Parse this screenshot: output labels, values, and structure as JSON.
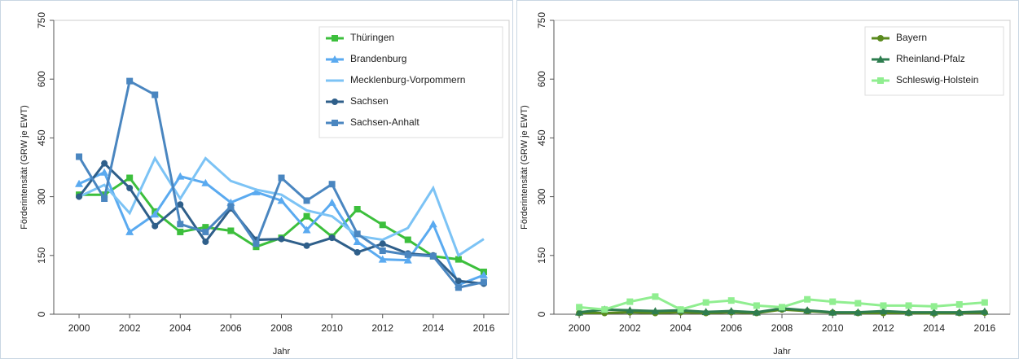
{
  "chart_data": [
    {
      "type": "line",
      "ylabel": "Förderintensität (GRW je EWT)",
      "xlabel": "Jahr",
      "x": [
        2000,
        2001,
        2002,
        2003,
        2004,
        2005,
        2006,
        2007,
        2008,
        2009,
        2010,
        2011,
        2012,
        2013,
        2014,
        2015,
        2016
      ],
      "xlim": [
        1999,
        2017
      ],
      "xticks": [
        2000,
        2002,
        2004,
        2006,
        2008,
        2010,
        2012,
        2014,
        2016
      ],
      "ylim": [
        0,
        750
      ],
      "yticks": [
        0,
        150,
        300,
        450,
        600,
        750
      ],
      "legend": "upper right",
      "series": [
        {
          "name": "Thüringen",
          "color": "#3cbf3c",
          "marker": "square",
          "values": [
            305,
            305,
            348,
            262,
            210,
            222,
            213,
            172,
            195,
            250,
            198,
            268,
            228,
            190,
            148,
            140,
            108
          ]
        },
        {
          "name": "Brandenburg",
          "color": "#5aaaf0",
          "marker": "triangle",
          "values": [
            333,
            362,
            210,
            255,
            352,
            335,
            285,
            312,
            290,
            215,
            285,
            185,
            140,
            138,
            230,
            75,
            100
          ]
        },
        {
          "name": "Mecklenburg-Vorpommern",
          "color": "#7cc3f5",
          "marker": "none",
          "values": [
            300,
            330,
            258,
            398,
            295,
            398,
            340,
            318,
            305,
            265,
            250,
            200,
            190,
            220,
            322,
            150,
            192
          ]
        },
        {
          "name": "Sachsen",
          "color": "#2f5f8a",
          "marker": "circle",
          "values": [
            300,
            385,
            322,
            225,
            280,
            185,
            270,
            190,
            192,
            175,
            195,
            158,
            180,
            155,
            150,
            85,
            78
          ]
        },
        {
          "name": "Sachsen-Anhalt",
          "color": "#4a86c0",
          "marker": "square",
          "values": [
            402,
            295,
            595,
            560,
            230,
            210,
            275,
            180,
            348,
            290,
            332,
            205,
            162,
            152,
            148,
            68,
            82
          ]
        }
      ]
    },
    {
      "type": "line",
      "ylabel": "Förderintensität (GRW je EWT)",
      "xlabel": "Jahr",
      "x": [
        2000,
        2001,
        2002,
        2003,
        2004,
        2005,
        2006,
        2007,
        2008,
        2009,
        2010,
        2011,
        2012,
        2013,
        2014,
        2015,
        2016
      ],
      "xlim": [
        1999,
        2017
      ],
      "xticks": [
        2000,
        2002,
        2004,
        2006,
        2008,
        2010,
        2012,
        2014,
        2016
      ],
      "ylim": [
        0,
        750
      ],
      "yticks": [
        0,
        150,
        300,
        450,
        600,
        750
      ],
      "legend": "upper right",
      "series": [
        {
          "name": "Bayern",
          "color": "#5a8a1e",
          "marker": "circle",
          "values": [
            3,
            3,
            5,
            3,
            5,
            3,
            5,
            3,
            12,
            8,
            4,
            3,
            3,
            3,
            2,
            3,
            4
          ]
        },
        {
          "name": "Rheinland-Pfalz",
          "color": "#2e7d4f",
          "marker": "triangle",
          "values": [
            5,
            12,
            10,
            8,
            10,
            6,
            8,
            5,
            15,
            10,
            5,
            5,
            8,
            5,
            5,
            5,
            7
          ]
        },
        {
          "name": "Schleswig-Holstein",
          "color": "#90ee90",
          "marker": "square",
          "values": [
            18,
            12,
            32,
            45,
            12,
            30,
            35,
            22,
            18,
            38,
            32,
            28,
            22,
            22,
            20,
            25,
            30
          ]
        }
      ]
    }
  ]
}
